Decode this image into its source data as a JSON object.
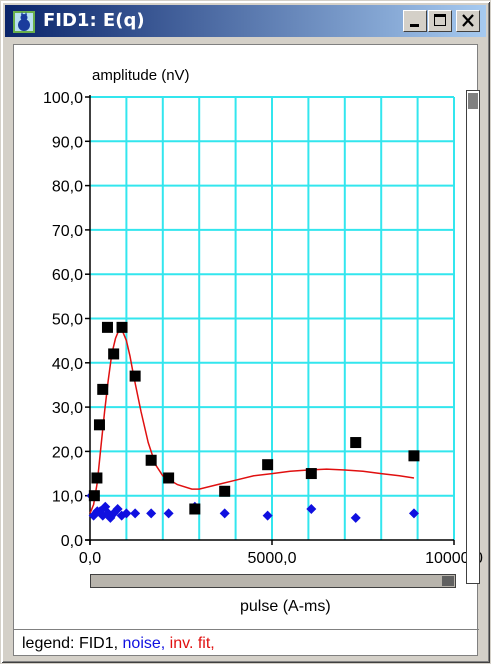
{
  "window": {
    "title": "FID1: E(q)",
    "icon": "cat-app-icon",
    "controls": [
      "minimize-icon",
      "maximize-icon",
      "close-icon"
    ]
  },
  "colors": {
    "grid": "#33e6ee",
    "fid1": "#000000",
    "noise": "#1010e0",
    "fit": "#e01010",
    "titlebar_start": "#0a246a",
    "titlebar_end": "#a6caf0"
  },
  "legend": {
    "prefix": "legend: ",
    "fid1": "FID1,",
    "noise": "noise,",
    "fit": "inv. fit,"
  },
  "chart_data": {
    "type": "scatter",
    "ylabel": "amplitude (nV)",
    "xlabel": "pulse (A-ms)",
    "xlim": [
      0,
      10000
    ],
    "ylim": [
      0,
      100
    ],
    "x_ticks": [
      "0,0",
      "5000,0",
      "10000,0"
    ],
    "y_ticks": [
      "0,0",
      "10,0",
      "20,0",
      "30,0",
      "40,0",
      "50,0",
      "60,0",
      "70,0",
      "80,0",
      "90,0",
      "100,0"
    ],
    "grid": true,
    "series": [
      {
        "name": "FID1",
        "marker": "square",
        "points": [
          [
            120,
            10
          ],
          [
            190,
            14
          ],
          [
            260,
            26
          ],
          [
            350,
            34
          ],
          [
            480,
            48
          ],
          [
            650,
            42
          ],
          [
            880,
            48
          ],
          [
            1240,
            37
          ],
          [
            1680,
            18
          ],
          [
            2160,
            14
          ],
          [
            2880,
            7
          ],
          [
            3700,
            11
          ],
          [
            4880,
            17
          ],
          [
            6080,
            15
          ],
          [
            7300,
            22
          ],
          [
            8900,
            19
          ]
        ]
      },
      {
        "name": "noise",
        "marker": "diamond",
        "points": [
          [
            40,
            10
          ],
          [
            100,
            5.5
          ],
          [
            200,
            6.5
          ],
          [
            280,
            6.5
          ],
          [
            350,
            5.5
          ],
          [
            420,
            7.5
          ],
          [
            500,
            6
          ],
          [
            560,
            5
          ],
          [
            650,
            6
          ],
          [
            760,
            7
          ],
          [
            870,
            5.5
          ],
          [
            1000,
            6
          ],
          [
            1240,
            6
          ],
          [
            1680,
            6
          ],
          [
            2160,
            6
          ],
          [
            2880,
            7.5
          ],
          [
            3700,
            6
          ],
          [
            4880,
            5.5
          ],
          [
            6080,
            7
          ],
          [
            7300,
            5
          ],
          [
            8900,
            6
          ]
        ]
      },
      {
        "name": "inv. fit",
        "marker": "line",
        "points": [
          [
            0,
            6
          ],
          [
            100,
            8
          ],
          [
            200,
            13
          ],
          [
            300,
            21
          ],
          [
            400,
            29
          ],
          [
            500,
            36
          ],
          [
            600,
            42
          ],
          [
            700,
            45.5
          ],
          [
            800,
            47.5
          ],
          [
            900,
            47
          ],
          [
            1000,
            45
          ],
          [
            1100,
            41.5
          ],
          [
            1200,
            37
          ],
          [
            1400,
            29
          ],
          [
            1600,
            22
          ],
          [
            1800,
            17
          ],
          [
            2000,
            14.5
          ],
          [
            2400,
            12.5
          ],
          [
            2800,
            11.5
          ],
          [
            3000,
            11.5
          ],
          [
            3500,
            12.5
          ],
          [
            4000,
            13.5
          ],
          [
            4500,
            14.5
          ],
          [
            5000,
            15
          ],
          [
            5500,
            15.5
          ],
          [
            6000,
            15.8
          ],
          [
            6500,
            16
          ],
          [
            7000,
            15.8
          ],
          [
            7500,
            15.5
          ],
          [
            8000,
            15
          ],
          [
            8500,
            14.5
          ],
          [
            8900,
            14
          ]
        ]
      }
    ]
  }
}
